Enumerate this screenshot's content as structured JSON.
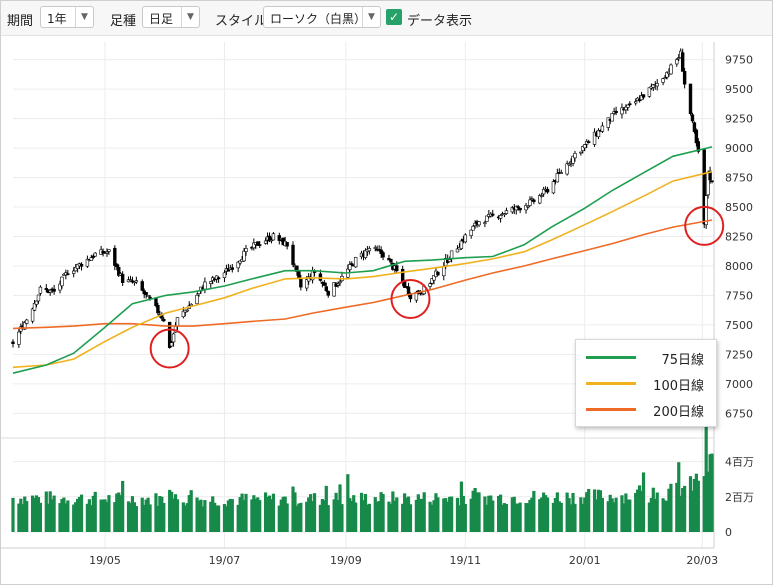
{
  "toolbar": {
    "period_label": "期間",
    "period_value": "1年",
    "footfall_label": "足種",
    "footfall_value": "日足",
    "style_label": "スタイル",
    "style_value": "ローソク（白黒）",
    "data_display_label": "データ表示",
    "data_display_checked": true
  },
  "chart_data": {
    "type": "candlestick",
    "title": "",
    "price_axis": {
      "ticks": [
        6750,
        7000,
        7250,
        7500,
        7750,
        8000,
        8250,
        8500,
        8750,
        9000,
        9250,
        9500,
        9750
      ],
      "range": [
        6600,
        9900
      ]
    },
    "volume_axis": {
      "ticks": [
        0,
        2000000,
        4000000
      ],
      "tick_labels": [
        "0",
        "2百万",
        "4百万"
      ],
      "range": [
        0,
        5000000
      ]
    },
    "x_axis": {
      "tick_labels": [
        "19/05",
        "19/07",
        "19/09",
        "19/11",
        "20/01",
        "20/03"
      ],
      "range": [
        "2019-03-15",
        "2020-03-07"
      ]
    },
    "series_colors": {
      "candles": "#000000",
      "volume": "#178a4a",
      "75day": "#1e9e4f",
      "100day": "#f0b21c",
      "200day": "#ef6a25",
      "circle": "#e02020"
    },
    "legend": {
      "placement": "bottom-right",
      "items": [
        {
          "name": "75日線",
          "color": "#1e9e4f"
        },
        {
          "name": "100日線",
          "color": "#f0b21c"
        },
        {
          "name": "200日線",
          "color": "#ef6a25"
        }
      ]
    },
    "close_path": [
      [
        "2019-03-15",
        7350
      ],
      [
        "2019-03-22",
        7550
      ],
      [
        "2019-03-29",
        7800
      ],
      [
        "2019-04-05",
        7780
      ],
      [
        "2019-04-12",
        7950
      ],
      [
        "2019-04-19",
        8020
      ],
      [
        "2019-04-26",
        8100
      ],
      [
        "2019-05-03",
        8120
      ],
      [
        "2019-05-10",
        7880
      ],
      [
        "2019-05-17",
        7850
      ],
      [
        "2019-05-24",
        7700
      ],
      [
        "2019-05-31",
        7550
      ],
      [
        "2019-06-03",
        7300
      ],
      [
        "2019-06-07",
        7550
      ],
      [
        "2019-06-14",
        7680
      ],
      [
        "2019-06-21",
        7850
      ],
      [
        "2019-06-28",
        7900
      ],
      [
        "2019-07-05",
        8000
      ],
      [
        "2019-07-12",
        8120
      ],
      [
        "2019-07-19",
        8200
      ],
      [
        "2019-07-26",
        8250
      ],
      [
        "2019-08-02",
        8180
      ],
      [
        "2019-08-09",
        7820
      ],
      [
        "2019-08-16",
        7950
      ],
      [
        "2019-08-23",
        7780
      ],
      [
        "2019-08-30",
        7900
      ],
      [
        "2019-09-06",
        8050
      ],
      [
        "2019-09-13",
        8150
      ],
      [
        "2019-09-20",
        8100
      ],
      [
        "2019-09-27",
        7950
      ],
      [
        "2019-10-04",
        7750
      ],
      [
        "2019-10-11",
        7800
      ],
      [
        "2019-10-18",
        7950
      ],
      [
        "2019-10-25",
        8100
      ],
      [
        "2019-11-01",
        8250
      ],
      [
        "2019-11-08",
        8380
      ],
      [
        "2019-11-15",
        8420
      ],
      [
        "2019-11-22",
        8460
      ],
      [
        "2019-11-29",
        8500
      ],
      [
        "2019-12-06",
        8550
      ],
      [
        "2019-12-13",
        8650
      ],
      [
        "2019-12-20",
        8800
      ],
      [
        "2019-12-27",
        8950
      ],
      [
        "2020-01-03",
        9050
      ],
      [
        "2020-01-10",
        9180
      ],
      [
        "2020-01-17",
        9300
      ],
      [
        "2020-01-24",
        9350
      ],
      [
        "2020-01-31",
        9450
      ],
      [
        "2020-02-07",
        9550
      ],
      [
        "2020-02-14",
        9680
      ],
      [
        "2020-02-19",
        9800
      ],
      [
        "2020-02-21",
        9550
      ],
      [
        "2020-02-25",
        9200
      ],
      [
        "2020-02-28",
        8950
      ],
      [
        "2020-03-02",
        8350
      ],
      [
        "2020-03-04",
        8800
      ],
      [
        "2020-03-06",
        8700
      ]
    ],
    "ma75": [
      [
        "2019-03-15",
        7090
      ],
      [
        "2019-04-01",
        7160
      ],
      [
        "2019-04-15",
        7260
      ],
      [
        "2019-05-01",
        7480
      ],
      [
        "2019-05-15",
        7680
      ],
      [
        "2019-06-01",
        7750
      ],
      [
        "2019-06-15",
        7780
      ],
      [
        "2019-07-01",
        7830
      ],
      [
        "2019-07-15",
        7890
      ],
      [
        "2019-08-01",
        7960
      ],
      [
        "2019-08-15",
        7960
      ],
      [
        "2019-09-01",
        7940
      ],
      [
        "2019-09-15",
        7960
      ],
      [
        "2019-10-01",
        8040
      ],
      [
        "2019-10-15",
        8050
      ],
      [
        "2019-11-01",
        8070
      ],
      [
        "2019-11-15",
        8080
      ],
      [
        "2019-12-01",
        8180
      ],
      [
        "2019-12-15",
        8330
      ],
      [
        "2020-01-01",
        8490
      ],
      [
        "2020-01-15",
        8640
      ],
      [
        "2020-02-01",
        8800
      ],
      [
        "2020-02-15",
        8930
      ],
      [
        "2020-03-06",
        9010
      ]
    ],
    "ma100": [
      [
        "2019-03-15",
        7140
      ],
      [
        "2019-04-01",
        7160
      ],
      [
        "2019-04-15",
        7210
      ],
      [
        "2019-05-01",
        7360
      ],
      [
        "2019-05-15",
        7480
      ],
      [
        "2019-06-01",
        7600
      ],
      [
        "2019-06-15",
        7660
      ],
      [
        "2019-07-01",
        7730
      ],
      [
        "2019-07-15",
        7810
      ],
      [
        "2019-08-01",
        7890
      ],
      [
        "2019-08-15",
        7900
      ],
      [
        "2019-09-01",
        7890
      ],
      [
        "2019-09-15",
        7910
      ],
      [
        "2019-10-01",
        7950
      ],
      [
        "2019-10-15",
        7980
      ],
      [
        "2019-11-01",
        8020
      ],
      [
        "2019-11-15",
        8060
      ],
      [
        "2019-12-01",
        8120
      ],
      [
        "2019-12-15",
        8220
      ],
      [
        "2020-01-01",
        8350
      ],
      [
        "2020-01-15",
        8460
      ],
      [
        "2020-02-01",
        8600
      ],
      [
        "2020-02-15",
        8720
      ],
      [
        "2020-03-06",
        8800
      ]
    ],
    "ma200": [
      [
        "2019-03-15",
        7470
      ],
      [
        "2019-04-01",
        7480
      ],
      [
        "2019-04-15",
        7490
      ],
      [
        "2019-05-01",
        7510
      ],
      [
        "2019-05-15",
        7510
      ],
      [
        "2019-06-01",
        7490
      ],
      [
        "2019-06-15",
        7490
      ],
      [
        "2019-07-01",
        7510
      ],
      [
        "2019-07-15",
        7530
      ],
      [
        "2019-08-01",
        7550
      ],
      [
        "2019-08-15",
        7600
      ],
      [
        "2019-09-01",
        7650
      ],
      [
        "2019-09-15",
        7690
      ],
      [
        "2019-10-01",
        7750
      ],
      [
        "2019-10-15",
        7800
      ],
      [
        "2019-11-01",
        7880
      ],
      [
        "2019-11-15",
        7940
      ],
      [
        "2019-12-01",
        8000
      ],
      [
        "2019-12-15",
        8060
      ],
      [
        "2020-01-01",
        8130
      ],
      [
        "2020-01-15",
        8190
      ],
      [
        "2020-02-01",
        8270
      ],
      [
        "2020-02-15",
        8330
      ],
      [
        "2020-03-06",
        8390
      ]
    ],
    "highlight_circles": [
      {
        "date": "2019-06-03",
        "value": 7300
      },
      {
        "date": "2019-10-04",
        "value": 7720
      },
      {
        "date": "2020-03-02",
        "value": 8340
      }
    ],
    "volume_path": [
      [
        "2019-03-15",
        1900000
      ],
      [
        "2019-05-01",
        1850000
      ],
      [
        "2019-07-01",
        1800000
      ],
      [
        "2019-09-01",
        1850000
      ],
      [
        "2019-11-01",
        1900000
      ],
      [
        "2019-12-15",
        1950000
      ],
      [
        "2020-01-15",
        2000000
      ],
      [
        "2020-02-10",
        2100000
      ],
      [
        "2020-02-25",
        2600000
      ],
      [
        "2020-03-06",
        3900000
      ]
    ]
  }
}
